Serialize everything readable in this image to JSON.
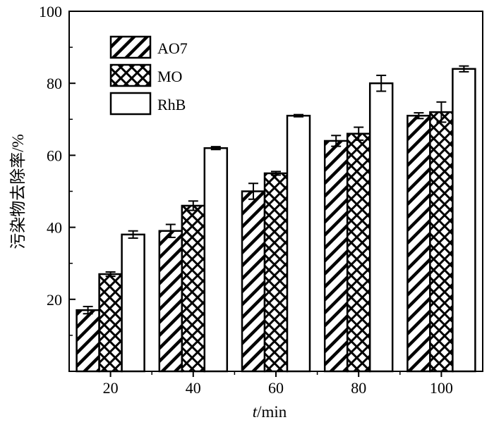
{
  "chart_data": {
    "type": "bar",
    "title": "",
    "xlabel_italic": "t",
    "xlabel_rest": "/min",
    "ylabel": "污染物去除率/%",
    "categories": [
      "20",
      "40",
      "60",
      "80",
      "100"
    ],
    "ylim": [
      0,
      100
    ],
    "yticks": [
      "20",
      "40",
      "60",
      "80",
      "100"
    ],
    "grid": false,
    "legend_position": "top-left",
    "series": [
      {
        "name": "AO7",
        "pattern": "diagonal-hatch",
        "values": [
          17,
          39,
          50,
          64,
          71
        ],
        "errors": [
          1,
          1.8,
          2.2,
          1.5,
          0.8
        ]
      },
      {
        "name": "MO",
        "pattern": "crosshatch",
        "values": [
          27,
          46,
          55,
          66,
          72
        ],
        "errors": [
          0.6,
          1.3,
          0.5,
          1.8,
          2.8
        ]
      },
      {
        "name": "RhB",
        "pattern": "white",
        "values": [
          38,
          62,
          71,
          80,
          84
        ],
        "errors": [
          1,
          0.4,
          0.3,
          2.2,
          0.8
        ]
      }
    ]
  }
}
